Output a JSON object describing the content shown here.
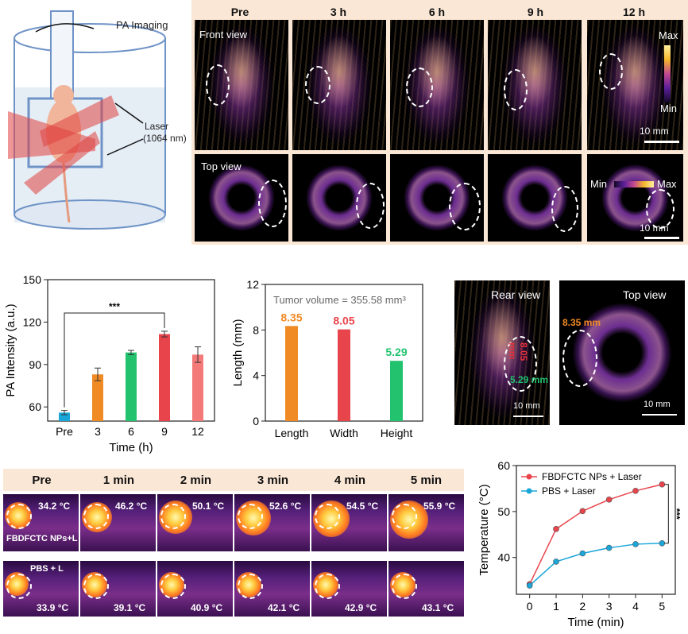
{
  "schematic": {
    "pa_imaging": "PA Imaging",
    "laser_line1": "Laser",
    "laser_line2": "(1064 nm)"
  },
  "pa_panel": {
    "timepoints": [
      "Pre",
      "3 h",
      "6 h",
      "9 h",
      "12 h"
    ],
    "front_view": "Front view",
    "top_view": "Top view",
    "cbar_max": "Max",
    "cbar_min": "Min",
    "scale": "10 mm"
  },
  "chart_data": [
    {
      "type": "bar",
      "categories": [
        "Pre",
        "3",
        "6",
        "9",
        "12"
      ],
      "values": [
        56,
        83,
        98.5,
        111.5,
        97
      ],
      "errors": [
        1.5,
        4.5,
        1.5,
        2,
        5.5
      ],
      "colors": [
        "#1aa6d8",
        "#f08a24",
        "#22c26f",
        "#e8444b",
        "#f47a7a"
      ],
      "xlabel": "Time (h)",
      "ylabel": "PA Intensity (a.u.)",
      "ylim": [
        50,
        150
      ],
      "yticks": [
        60,
        90,
        120,
        150
      ],
      "significance": "***"
    },
    {
      "type": "bar",
      "categories": [
        "Length",
        "Width",
        "Height"
      ],
      "values": [
        8.35,
        8.05,
        5.29
      ],
      "value_labels": [
        "8.35",
        "8.05",
        "5.29"
      ],
      "colors": [
        "#f08a24",
        "#e8444b",
        "#22c26f"
      ],
      "xlabel": "",
      "ylabel": "Length (mm)",
      "ylim": [
        0,
        12
      ],
      "yticks": [
        0,
        4,
        8,
        12
      ],
      "annotation": "Tumor volume = 355.58 mm³"
    },
    {
      "type": "line",
      "x": [
        0,
        1,
        2,
        3,
        4,
        5
      ],
      "series": [
        {
          "name": "FBDFCTC NPs + Laser",
          "values": [
            34.2,
            46.2,
            50.1,
            52.6,
            54.5,
            55.9
          ],
          "color": "#e8444b"
        },
        {
          "name": "PBS + Laser",
          "values": [
            33.9,
            39.1,
            40.9,
            42.1,
            42.9,
            43.1
          ],
          "color": "#1aa6d8"
        }
      ],
      "xlabel": "Time (min)",
      "ylabel": "Temperature (°C)",
      "xlim": [
        -0.5,
        5.5
      ],
      "ylim": [
        32,
        60
      ],
      "xticks": [
        0,
        1,
        2,
        3,
        4,
        5
      ],
      "yticks": [
        40,
        50,
        60
      ],
      "significance": "***"
    }
  ],
  "views": {
    "rear": "Rear view",
    "top": "Top view",
    "len": "8.05 mm",
    "wid": "5.29 mm",
    "top_len": "8.35 mm",
    "scale": "10 mm"
  },
  "thermal": {
    "timepoints": [
      "Pre",
      "1 min",
      "2 min",
      "3 min",
      "4 min",
      "5 min"
    ],
    "np_label": "FBDFCTC NPs+L",
    "pbs_label": "PBS + L",
    "np_temps": [
      "34.2 °C",
      "46.2 °C",
      "50.1 °C",
      "52.6 °C",
      "54.5 °C",
      "55.9 °C"
    ],
    "pbs_temps": [
      "33.9 °C",
      "39.1 °C",
      "40.9 °C",
      "42.1 °C",
      "42.9 °C",
      "43.1 °C"
    ]
  }
}
